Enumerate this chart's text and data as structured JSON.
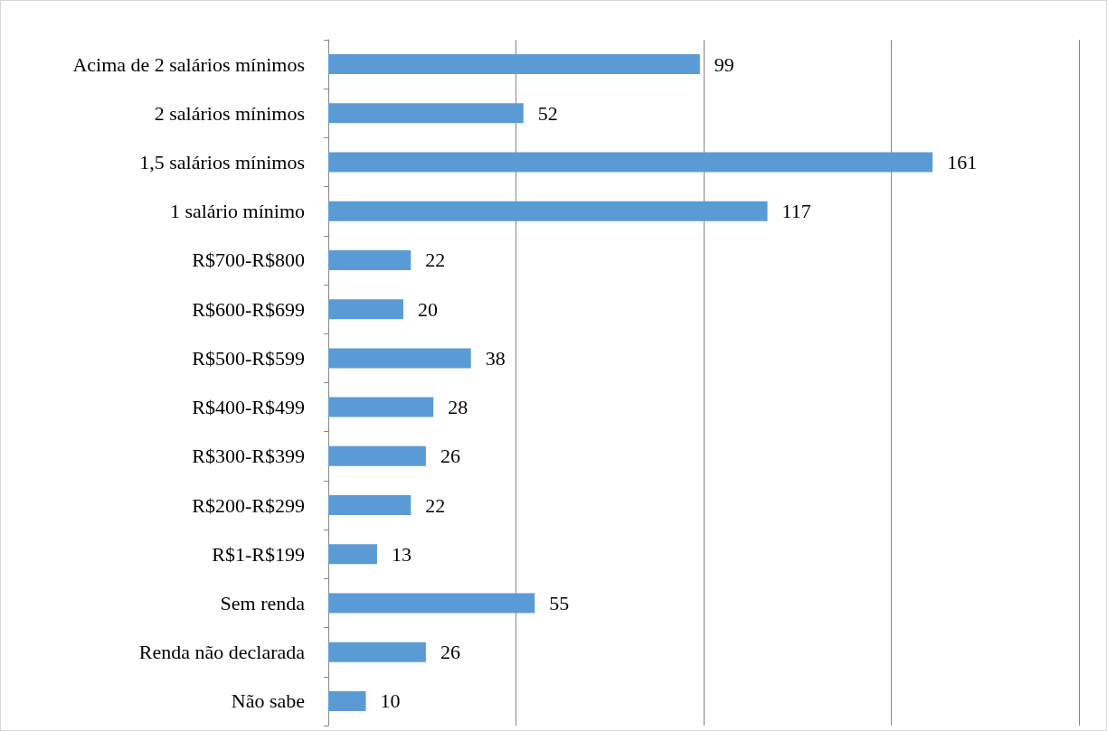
{
  "chart_data": {
    "type": "bar",
    "orientation": "horizontal",
    "categories": [
      "Acima de 2 salários mínimos",
      "2 salários mínimos",
      "1,5 salários mínimos",
      "1 salário mínimo",
      "R$700-R$800",
      "R$600-R$699",
      "R$500-R$599",
      "R$400-R$499",
      "R$300-R$399",
      "R$200-R$299",
      "R$1-R$199",
      "Sem renda",
      "Renda não declarada",
      "Não sabe"
    ],
    "values": [
      99,
      52,
      161,
      117,
      22,
      20,
      38,
      28,
      26,
      22,
      13,
      55,
      26,
      10
    ],
    "color": "#5b9bd5",
    "xlim": [
      0,
      200
    ],
    "xticks": [
      {
        "value": 0,
        "label": null
      },
      {
        "value": 50,
        "label": null
      },
      {
        "value": 100,
        "label": null
      },
      {
        "value": 150,
        "label": null
      },
      {
        "value": 200,
        "label": null
      }
    ],
    "grid": "x",
    "data_labels": true,
    "tick_labels": "y"
  }
}
